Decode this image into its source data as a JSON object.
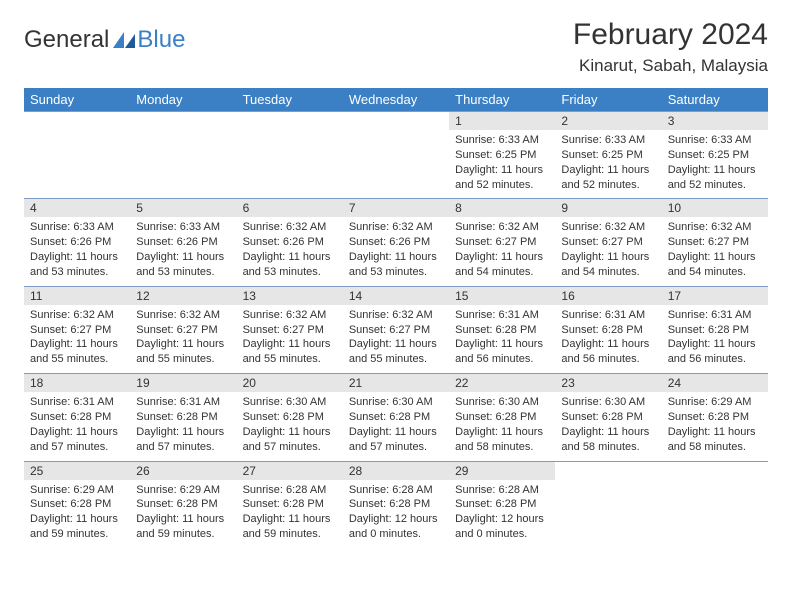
{
  "logo": {
    "general": "General",
    "blue": "Blue"
  },
  "header": {
    "title": "February 2024",
    "location": "Kinarut, Sabah, Malaysia"
  },
  "colors": {
    "header_bg": "#3b7fc4",
    "header_fg": "#ffffff",
    "daynum_bg": "#e6e6e6",
    "row_border": "#7a9cc6",
    "text": "#333333",
    "logo_blue": "#3b7fc4"
  },
  "dayNames": [
    "Sunday",
    "Monday",
    "Tuesday",
    "Wednesday",
    "Thursday",
    "Friday",
    "Saturday"
  ],
  "weeks": [
    [
      null,
      null,
      null,
      null,
      {
        "n": "1",
        "sr": "Sunrise: 6:33 AM",
        "ss": "Sunset: 6:25 PM",
        "d1": "Daylight: 11 hours",
        "d2": "and 52 minutes."
      },
      {
        "n": "2",
        "sr": "Sunrise: 6:33 AM",
        "ss": "Sunset: 6:25 PM",
        "d1": "Daylight: 11 hours",
        "d2": "and 52 minutes."
      },
      {
        "n": "3",
        "sr": "Sunrise: 6:33 AM",
        "ss": "Sunset: 6:25 PM",
        "d1": "Daylight: 11 hours",
        "d2": "and 52 minutes."
      }
    ],
    [
      {
        "n": "4",
        "sr": "Sunrise: 6:33 AM",
        "ss": "Sunset: 6:26 PM",
        "d1": "Daylight: 11 hours",
        "d2": "and 53 minutes."
      },
      {
        "n": "5",
        "sr": "Sunrise: 6:33 AM",
        "ss": "Sunset: 6:26 PM",
        "d1": "Daylight: 11 hours",
        "d2": "and 53 minutes."
      },
      {
        "n": "6",
        "sr": "Sunrise: 6:32 AM",
        "ss": "Sunset: 6:26 PM",
        "d1": "Daylight: 11 hours",
        "d2": "and 53 minutes."
      },
      {
        "n": "7",
        "sr": "Sunrise: 6:32 AM",
        "ss": "Sunset: 6:26 PM",
        "d1": "Daylight: 11 hours",
        "d2": "and 53 minutes."
      },
      {
        "n": "8",
        "sr": "Sunrise: 6:32 AM",
        "ss": "Sunset: 6:27 PM",
        "d1": "Daylight: 11 hours",
        "d2": "and 54 minutes."
      },
      {
        "n": "9",
        "sr": "Sunrise: 6:32 AM",
        "ss": "Sunset: 6:27 PM",
        "d1": "Daylight: 11 hours",
        "d2": "and 54 minutes."
      },
      {
        "n": "10",
        "sr": "Sunrise: 6:32 AM",
        "ss": "Sunset: 6:27 PM",
        "d1": "Daylight: 11 hours",
        "d2": "and 54 minutes."
      }
    ],
    [
      {
        "n": "11",
        "sr": "Sunrise: 6:32 AM",
        "ss": "Sunset: 6:27 PM",
        "d1": "Daylight: 11 hours",
        "d2": "and 55 minutes."
      },
      {
        "n": "12",
        "sr": "Sunrise: 6:32 AM",
        "ss": "Sunset: 6:27 PM",
        "d1": "Daylight: 11 hours",
        "d2": "and 55 minutes."
      },
      {
        "n": "13",
        "sr": "Sunrise: 6:32 AM",
        "ss": "Sunset: 6:27 PM",
        "d1": "Daylight: 11 hours",
        "d2": "and 55 minutes."
      },
      {
        "n": "14",
        "sr": "Sunrise: 6:32 AM",
        "ss": "Sunset: 6:27 PM",
        "d1": "Daylight: 11 hours",
        "d2": "and 55 minutes."
      },
      {
        "n": "15",
        "sr": "Sunrise: 6:31 AM",
        "ss": "Sunset: 6:28 PM",
        "d1": "Daylight: 11 hours",
        "d2": "and 56 minutes."
      },
      {
        "n": "16",
        "sr": "Sunrise: 6:31 AM",
        "ss": "Sunset: 6:28 PM",
        "d1": "Daylight: 11 hours",
        "d2": "and 56 minutes."
      },
      {
        "n": "17",
        "sr": "Sunrise: 6:31 AM",
        "ss": "Sunset: 6:28 PM",
        "d1": "Daylight: 11 hours",
        "d2": "and 56 minutes."
      }
    ],
    [
      {
        "n": "18",
        "sr": "Sunrise: 6:31 AM",
        "ss": "Sunset: 6:28 PM",
        "d1": "Daylight: 11 hours",
        "d2": "and 57 minutes."
      },
      {
        "n": "19",
        "sr": "Sunrise: 6:31 AM",
        "ss": "Sunset: 6:28 PM",
        "d1": "Daylight: 11 hours",
        "d2": "and 57 minutes."
      },
      {
        "n": "20",
        "sr": "Sunrise: 6:30 AM",
        "ss": "Sunset: 6:28 PM",
        "d1": "Daylight: 11 hours",
        "d2": "and 57 minutes."
      },
      {
        "n": "21",
        "sr": "Sunrise: 6:30 AM",
        "ss": "Sunset: 6:28 PM",
        "d1": "Daylight: 11 hours",
        "d2": "and 57 minutes."
      },
      {
        "n": "22",
        "sr": "Sunrise: 6:30 AM",
        "ss": "Sunset: 6:28 PM",
        "d1": "Daylight: 11 hours",
        "d2": "and 58 minutes."
      },
      {
        "n": "23",
        "sr": "Sunrise: 6:30 AM",
        "ss": "Sunset: 6:28 PM",
        "d1": "Daylight: 11 hours",
        "d2": "and 58 minutes."
      },
      {
        "n": "24",
        "sr": "Sunrise: 6:29 AM",
        "ss": "Sunset: 6:28 PM",
        "d1": "Daylight: 11 hours",
        "d2": "and 58 minutes."
      }
    ],
    [
      {
        "n": "25",
        "sr": "Sunrise: 6:29 AM",
        "ss": "Sunset: 6:28 PM",
        "d1": "Daylight: 11 hours",
        "d2": "and 59 minutes."
      },
      {
        "n": "26",
        "sr": "Sunrise: 6:29 AM",
        "ss": "Sunset: 6:28 PM",
        "d1": "Daylight: 11 hours",
        "d2": "and 59 minutes."
      },
      {
        "n": "27",
        "sr": "Sunrise: 6:28 AM",
        "ss": "Sunset: 6:28 PM",
        "d1": "Daylight: 11 hours",
        "d2": "and 59 minutes."
      },
      {
        "n": "28",
        "sr": "Sunrise: 6:28 AM",
        "ss": "Sunset: 6:28 PM",
        "d1": "Daylight: 12 hours",
        "d2": "and 0 minutes."
      },
      {
        "n": "29",
        "sr": "Sunrise: 6:28 AM",
        "ss": "Sunset: 6:28 PM",
        "d1": "Daylight: 12 hours",
        "d2": "and 0 minutes."
      },
      null,
      null
    ]
  ]
}
